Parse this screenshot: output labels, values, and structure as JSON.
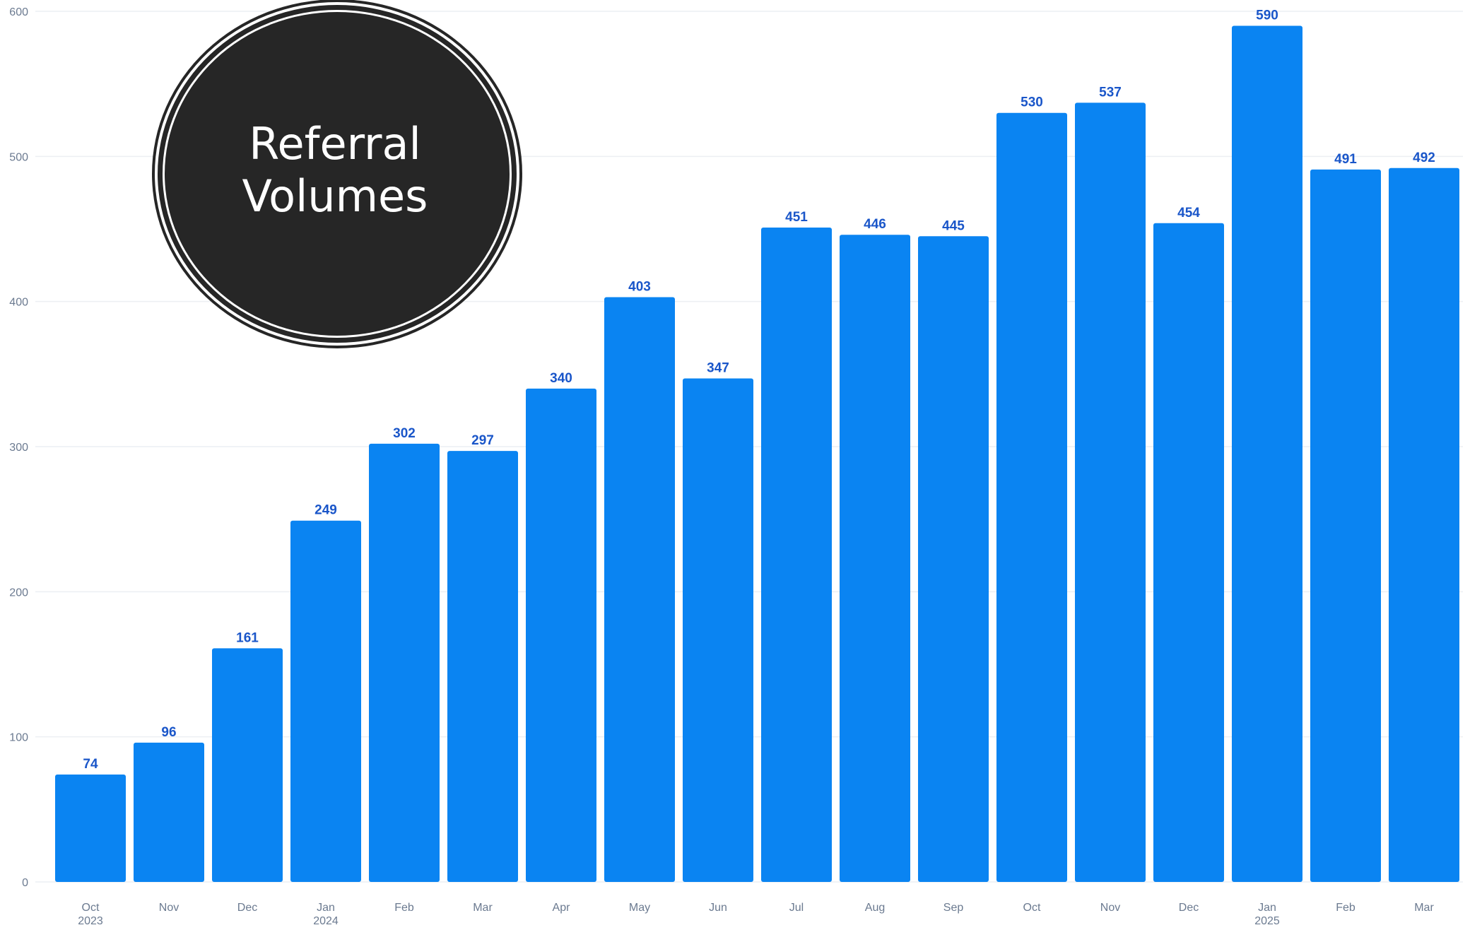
{
  "chart_data": {
    "type": "bar",
    "title": "Referral Volumes",
    "categories": [
      {
        "month": "Oct",
        "year": "2023"
      },
      {
        "month": "Nov",
        "year": ""
      },
      {
        "month": "Dec",
        "year": ""
      },
      {
        "month": "Jan",
        "year": "2024"
      },
      {
        "month": "Feb",
        "year": ""
      },
      {
        "month": "Mar",
        "year": ""
      },
      {
        "month": "Apr",
        "year": ""
      },
      {
        "month": "May",
        "year": ""
      },
      {
        "month": "Jun",
        "year": ""
      },
      {
        "month": "Jul",
        "year": ""
      },
      {
        "month": "Aug",
        "year": ""
      },
      {
        "month": "Sep",
        "year": ""
      },
      {
        "month": "Oct",
        "year": ""
      },
      {
        "month": "Nov",
        "year": ""
      },
      {
        "month": "Dec",
        "year": ""
      },
      {
        "month": "Jan",
        "year": "2025"
      },
      {
        "month": "Feb",
        "year": ""
      },
      {
        "month": "Mar",
        "year": ""
      }
    ],
    "values": [
      74,
      96,
      161,
      249,
      302,
      297,
      340,
      403,
      347,
      451,
      446,
      445,
      530,
      537,
      454,
      590,
      491,
      492
    ],
    "ylim": [
      0,
      600
    ],
    "yticks": [
      0,
      100,
      200,
      300,
      400,
      500,
      600
    ],
    "grid": true,
    "data_labels": true,
    "bar_color": "#0a84f2",
    "label_color": "#1a56c9",
    "axis_text_color": "#6b7a90",
    "xlabel": "",
    "ylabel": ""
  },
  "badge": {
    "background": "#262626",
    "text_color": "#ffffff"
  }
}
